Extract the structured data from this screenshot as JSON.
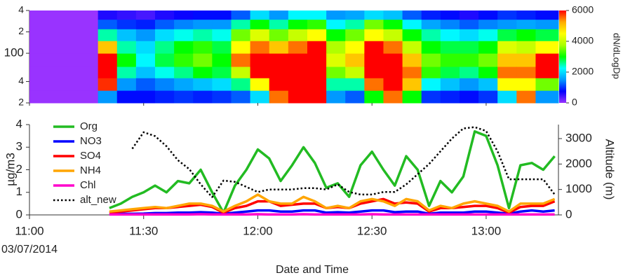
{
  "chart_data": [
    {
      "type": "heatmap",
      "x": [
        "11:00",
        "11:18",
        "11:23",
        "11:28",
        "11:33",
        "11:38",
        "11:43",
        "11:48",
        "11:53",
        "11:58",
        "12:03",
        "12:08",
        "12:13",
        "12:18",
        "12:23",
        "12:28",
        "12:33",
        "12:38",
        "12:43",
        "12:48",
        "12:53",
        "12:58",
        "13:03",
        "13:08",
        "13:13"
      ],
      "xlim": [
        "11:00",
        "13:19"
      ],
      "xticks": [
        "11:00",
        "11:30",
        "12:00",
        "12:30",
        "13:00"
      ],
      "ybins": [
        20,
        30,
        45,
        65,
        100,
        150,
        220,
        300,
        400
      ],
      "ylim": [
        20,
        400
      ],
      "log_y": true,
      "yticks": [
        {
          "value": 400,
          "label": "4"
        },
        {
          "value": 200,
          "label": "2"
        },
        100,
        {
          "value": 40,
          "label": "4"
        },
        {
          "value": 20,
          "label": "2"
        }
      ],
      "z": [
        [
          0,
          0,
          0,
          0,
          0,
          0,
          0,
          0
        ],
        [
          1500,
          5800,
          6000,
          6000,
          5000,
          2500,
          1200,
          600
        ],
        [
          800,
          1500,
          2500,
          3000,
          2500,
          1800,
          1000,
          500
        ],
        [
          800,
          1200,
          1800,
          2200,
          2000,
          1500,
          900,
          400
        ],
        [
          900,
          1400,
          2300,
          2800,
          2600,
          2000,
          1200,
          600
        ],
        [
          1000,
          1600,
          2600,
          3200,
          3000,
          2300,
          1400,
          700
        ],
        [
          900,
          1800,
          3000,
          3500,
          3200,
          2500,
          1500,
          800
        ],
        [
          1000,
          2000,
          2800,
          3000,
          2800,
          2300,
          1500,
          800
        ],
        [
          1200,
          2600,
          4000,
          5500,
          4500,
          3500,
          2500,
          1200
        ],
        [
          2000,
          4500,
          6000,
          6000,
          5500,
          4200,
          3000,
          2000
        ],
        [
          5500,
          6000,
          6000,
          6000,
          5000,
          3500,
          2500,
          1500
        ],
        [
          6000,
          6000,
          6000,
          6000,
          5500,
          4000,
          3000,
          2200
        ],
        [
          6000,
          6000,
          6000,
          6000,
          6000,
          4500,
          3200,
          2200
        ],
        [
          1500,
          2500,
          3500,
          4200,
          3800,
          3000,
          2200,
          1500
        ],
        [
          1200,
          2500,
          4000,
          5000,
          4500,
          3500,
          2500,
          1600
        ],
        [
          3000,
          5500,
          6000,
          6000,
          6000,
          4500,
          3500,
          2000
        ],
        [
          5500,
          6000,
          6000,
          6000,
          5500,
          4000,
          3000,
          1800
        ],
        [
          3000,
          5000,
          5500,
          5000,
          4000,
          3000,
          2200,
          1200
        ],
        [
          1000,
          2200,
          3200,
          3500,
          3000,
          2500,
          1600,
          900
        ],
        [
          900,
          1800,
          2800,
          3200,
          2800,
          2200,
          1400,
          800
        ],
        [
          800,
          1500,
          2600,
          3200,
          2800,
          2000,
          1200,
          600
        ],
        [
          1000,
          1800,
          3000,
          3500,
          3000,
          2300,
          1400,
          800
        ],
        [
          2000,
          4500,
          5500,
          5000,
          4200,
          2800,
          1500,
          1000
        ],
        [
          5500,
          4500,
          5500,
          5000,
          4000,
          3000,
          1600,
          900
        ],
        [
          1500,
          3500,
          6000,
          6000,
          4500,
          2800,
          1500,
          800
        ]
      ],
      "zlim": [
        0,
        6000
      ],
      "zticks": [
        0,
        2000,
        4000,
        6000
      ],
      "colorscale": [
        "#9933ff",
        "#0000ff",
        "#0099ff",
        "#00ffff",
        "#00ff00",
        "#aaff00",
        "#ffff00",
        "#ffaa00",
        "#ff0000"
      ],
      "colorbar_title": "dN/dLogDp"
    },
    {
      "type": "line",
      "x": [
        "11:21",
        "11:24",
        "11:27",
        "11:30",
        "11:33",
        "11:36",
        "11:39",
        "11:42",
        "11:45",
        "11:48",
        "11:51",
        "11:54",
        "11:57",
        "12:00",
        "12:03",
        "12:06",
        "12:09",
        "12:12",
        "12:15",
        "12:18",
        "12:21",
        "12:24",
        "12:27",
        "12:30",
        "12:33",
        "12:36",
        "12:39",
        "12:42",
        "12:45",
        "12:48",
        "12:51",
        "12:54",
        "12:57",
        "13:00",
        "13:03",
        "13:06",
        "13:09",
        "13:12",
        "13:15",
        "13:18"
      ],
      "xlim": [
        "11:00",
        "13:19"
      ],
      "xticks": [
        "11:00",
        "11:30",
        "12:00",
        "12:30",
        "13:00"
      ],
      "date_label": "03/07/2014",
      "xlabel": "Date and Time",
      "ylabel": "µg/m3",
      "y2label": "Altitude (m)",
      "ylim": [
        0,
        4
      ],
      "yticks": [
        0,
        1,
        2,
        3,
        4
      ],
      "y2lim": [
        0,
        3550
      ],
      "y2ticks": [
        0,
        1000,
        2000,
        3000
      ],
      "legend": "top-left",
      "series": [
        {
          "name": "Org",
          "color": "#22bb22",
          "values": [
            0.3,
            0.5,
            0.8,
            1.0,
            1.3,
            1.0,
            1.5,
            1.4,
            2.0,
            1.0,
            0.1,
            1.3,
            2.0,
            2.9,
            2.5,
            1.5,
            2.2,
            3.0,
            2.3,
            1.2,
            1.4,
            0.8,
            2.2,
            2.8,
            2.0,
            1.3,
            2.6,
            2.0,
            0.4,
            1.5,
            1.0,
            1.7,
            3.7,
            3.5,
            2.2,
            0.3,
            2.2,
            2.3,
            2.0,
            2.6
          ]
        },
        {
          "name": "NO3",
          "color": "#0000ff",
          "values": [
            0.05,
            0.05,
            0.05,
            0.06,
            0.08,
            0.08,
            0.1,
            0.1,
            0.12,
            0.1,
            0.05,
            0.1,
            0.15,
            0.2,
            0.2,
            0.15,
            0.15,
            0.2,
            0.2,
            0.1,
            0.12,
            0.1,
            0.15,
            0.2,
            0.2,
            0.12,
            0.15,
            0.15,
            0.05,
            0.1,
            0.1,
            0.1,
            0.15,
            0.15,
            0.1,
            0.05,
            0.15,
            0.2,
            0.15,
            0.2
          ]
        },
        {
          "name": "SO4",
          "color": "#ff0000",
          "values": [
            0.1,
            0.15,
            0.2,
            0.25,
            0.3,
            0.3,
            0.35,
            0.4,
            0.45,
            0.35,
            0.1,
            0.3,
            0.4,
            0.6,
            0.6,
            0.4,
            0.45,
            0.5,
            0.5,
            0.3,
            0.35,
            0.3,
            0.5,
            0.6,
            0.7,
            0.5,
            0.55,
            0.5,
            0.15,
            0.3,
            0.3,
            0.35,
            0.4,
            0.4,
            0.3,
            0.1,
            0.35,
            0.4,
            0.4,
            0.6
          ]
        },
        {
          "name": "NH4",
          "color": "#ffa500",
          "values": [
            0.15,
            0.2,
            0.25,
            0.3,
            0.35,
            0.3,
            0.4,
            0.5,
            0.5,
            0.4,
            0.15,
            0.4,
            0.6,
            0.9,
            0.6,
            0.5,
            0.5,
            0.8,
            0.6,
            0.3,
            0.4,
            0.3,
            0.6,
            0.7,
            0.6,
            0.4,
            0.7,
            0.6,
            0.2,
            0.4,
            0.3,
            0.5,
            0.6,
            0.5,
            0.4,
            0.15,
            0.5,
            0.5,
            0.5,
            0.7
          ]
        },
        {
          "name": "Chl",
          "color": "#ff00cc",
          "values": [
            0.02,
            0.02,
            0.02,
            0.02,
            0.02,
            0.02,
            0.02,
            0.02,
            0.03,
            0.02,
            0.02,
            0.02,
            0.02,
            0.03,
            0.02,
            0.02,
            0.02,
            0.03,
            0.02,
            0.02,
            0.02,
            0.02,
            0.02,
            0.03,
            0.02,
            0.02,
            0.02,
            0.02,
            0.02,
            0.02,
            0.02,
            0.02,
            0.02,
            0.02,
            0.02,
            0.02,
            0.02,
            0.02,
            0.02,
            0.02
          ]
        },
        {
          "name": "alt_new",
          "color": "#000000",
          "style": "dotted",
          "axis": "y2",
          "values": [
            null,
            null,
            2600,
            3250,
            3100,
            2700,
            2150,
            1800,
            1200,
            700,
            1350,
            1300,
            1100,
            900,
            1000,
            1000,
            1000,
            1050,
            1050,
            1000,
            1200,
            900,
            800,
            800,
            900,
            900,
            1200,
            1600,
            2000,
            2500,
            3000,
            3400,
            3450,
            3300,
            2500,
            1400,
            1400,
            1400,
            1400,
            800
          ]
        }
      ]
    }
  ]
}
